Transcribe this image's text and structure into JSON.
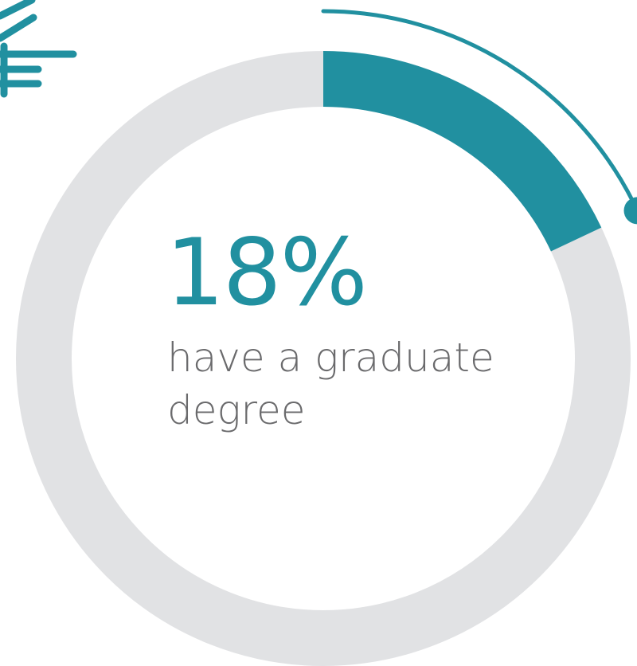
{
  "chart_data": {
    "type": "pie",
    "style": "donut",
    "value_percent": 18,
    "label": "18%",
    "caption_line1": "have a graduate",
    "caption_line2": "degree"
  },
  "colors": {
    "highlight": "#2190A0",
    "track": "#E1E2E4",
    "caption_text": "#6A6A6C",
    "background": "#FFFFFF"
  },
  "icons": {
    "decoration_top_left": "stripes-decoration-icon",
    "pointer": "curved-pointer-arc-icon"
  }
}
